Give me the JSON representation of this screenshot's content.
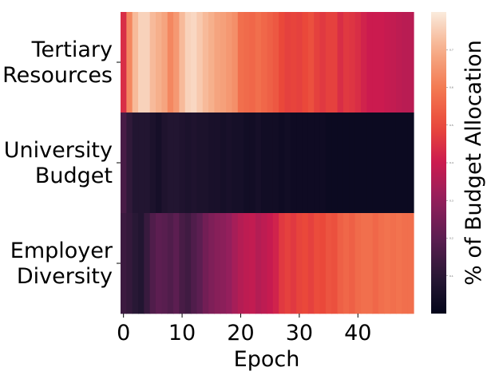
{
  "chart_data": {
    "type": "heatmap",
    "title": "",
    "xlabel": "Epoch",
    "ylabel": "",
    "rows": [
      "Tertiary Resources",
      "University Budget",
      "Employer Diversity"
    ],
    "row_label_lines": [
      [
        "Tertiary",
        "Resources"
      ],
      [
        "University",
        "Budget"
      ],
      [
        "Employer",
        "Diversity"
      ]
    ],
    "x_ticks": [
      0,
      10,
      20,
      30,
      40
    ],
    "n_epochs": 50,
    "colorbar_label": "% of Budget Allocation",
    "colorbar_ticks": [
      "0.1",
      "0.2",
      "0.3",
      "0.4",
      "0.5",
      "0.6",
      "0.7"
    ],
    "colormap": "rocket",
    "values_scale": [
      0,
      1
    ],
    "values": [
      [
        0.55,
        0.78,
        0.9,
        0.95,
        0.95,
        0.9,
        0.88,
        0.85,
        0.78,
        0.82,
        0.9,
        0.95,
        0.96,
        0.93,
        0.9,
        0.88,
        0.85,
        0.84,
        0.82,
        0.8,
        0.72,
        0.71,
        0.7,
        0.72,
        0.7,
        0.68,
        0.66,
        0.62,
        0.6,
        0.61,
        0.6,
        0.62,
        0.64,
        0.6,
        0.58,
        0.6,
        0.6,
        0.55,
        0.58,
        0.57,
        0.55,
        0.52,
        0.5,
        0.5,
        0.5,
        0.49,
        0.48,
        0.47,
        0.46,
        0.46
      ],
      [
        0.2,
        0.14,
        0.1,
        0.1,
        0.1,
        0.08,
        0.06,
        0.09,
        0.1,
        0.1,
        0.09,
        0.08,
        0.09,
        0.08,
        0.08,
        0.07,
        0.07,
        0.06,
        0.07,
        0.06,
        0.06,
        0.05,
        0.05,
        0.06,
        0.05,
        0.05,
        0.05,
        0.04,
        0.05,
        0.04,
        0.04,
        0.04,
        0.04,
        0.04,
        0.04,
        0.03,
        0.03,
        0.03,
        0.03,
        0.03,
        0.03,
        0.03,
        0.03,
        0.03,
        0.03,
        0.03,
        0.03,
        0.03,
        0.03,
        0.03
      ],
      [
        0.17,
        0.15,
        0.12,
        0.1,
        0.16,
        0.22,
        0.25,
        0.24,
        0.22,
        0.25,
        0.2,
        0.18,
        0.22,
        0.25,
        0.3,
        0.33,
        0.35,
        0.36,
        0.38,
        0.42,
        0.45,
        0.47,
        0.48,
        0.45,
        0.47,
        0.49,
        0.52,
        0.58,
        0.6,
        0.58,
        0.61,
        0.62,
        0.6,
        0.63,
        0.62,
        0.65,
        0.64,
        0.68,
        0.7,
        0.68,
        0.71,
        0.72,
        0.72,
        0.7,
        0.72,
        0.73,
        0.72,
        0.73,
        0.72,
        0.72
      ]
    ]
  }
}
